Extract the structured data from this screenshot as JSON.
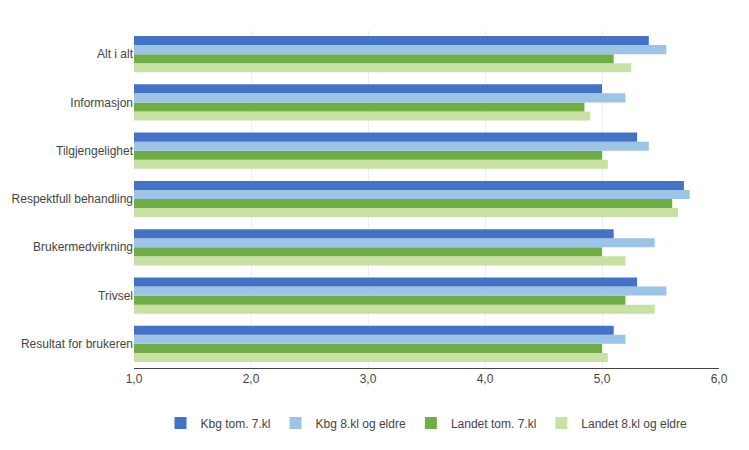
{
  "chart_data": {
    "type": "bar",
    "orientation": "horizontal",
    "categories": [
      "Resultat for brukeren",
      "Trivsel",
      "Brukermedvirkning",
      "Respektfull behandling",
      "Tilgjengelighet",
      "Informasjon",
      "Alt i alt"
    ],
    "series": [
      {
        "name": "Kbg tom. 7.kl",
        "color": "#4472C4",
        "values": [
          5.1,
          5.3,
          5.1,
          5.7,
          5.3,
          5.0,
          5.4
        ]
      },
      {
        "name": "Kbg 8.kl og eldre",
        "color": "#9DC3E6",
        "values": [
          5.2,
          5.55,
          5.45,
          5.75,
          5.4,
          5.2,
          5.55
        ]
      },
      {
        "name": "Landet tom. 7.kl",
        "color": "#70AD47",
        "values": [
          5.0,
          5.2,
          5.0,
          5.6,
          5.0,
          4.85,
          5.1
        ]
      },
      {
        "name": "Landet 8.kl og eldre",
        "color": "#C9E0A5",
        "values": [
          5.05,
          5.45,
          5.2,
          5.65,
          5.05,
          4.9,
          5.25
        ]
      }
    ],
    "xlim": [
      1.0,
      6.0
    ],
    "xticks": [
      {
        "value": 1.0,
        "label": "1,0"
      },
      {
        "value": 2.0,
        "label": "2,0"
      },
      {
        "value": 3.0,
        "label": "3,0"
      },
      {
        "value": 4.0,
        "label": "4,0"
      },
      {
        "value": 5.0,
        "label": "5,0"
      },
      {
        "value": 6.0,
        "label": "6,0"
      }
    ],
    "grid": true,
    "legend": "bottom"
  }
}
